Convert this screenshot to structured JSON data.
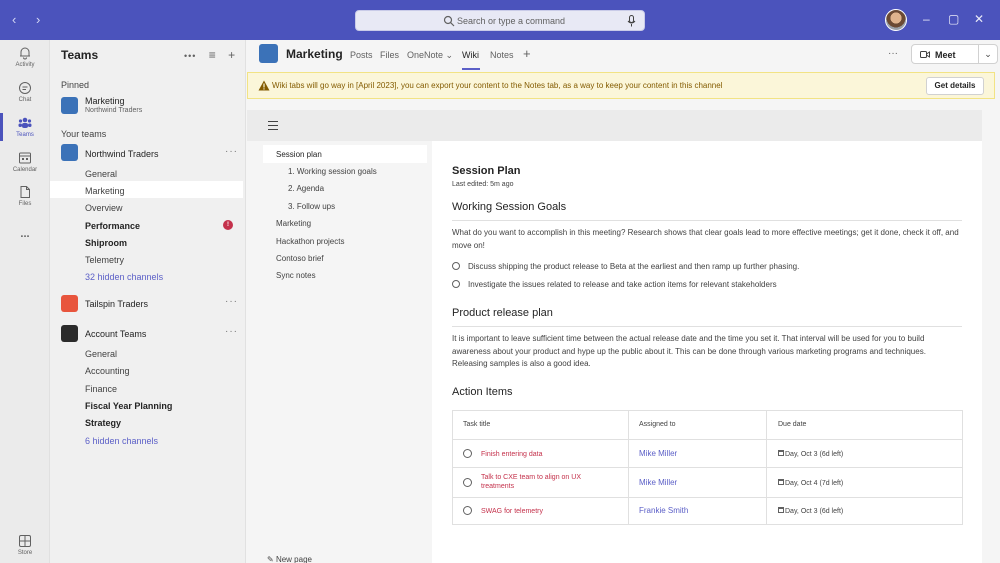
{
  "titlebar": {
    "search_placeholder": "Search or type a command"
  },
  "rail": {
    "items": [
      {
        "label": "Activity",
        "icon": "bell-icon"
      },
      {
        "label": "Chat",
        "icon": "chat-icon"
      },
      {
        "label": "Teams",
        "icon": "teams-icon"
      },
      {
        "label": "Calendar",
        "icon": "calendar-icon"
      },
      {
        "label": "Files",
        "icon": "file-icon"
      },
      {
        "label": "Store",
        "icon": "store-icon"
      }
    ],
    "more": "..."
  },
  "teams_panel": {
    "title": "Teams",
    "pinned_label": "Pinned",
    "pinned": {
      "name": "Marketing",
      "sub": "Northwind Traders"
    },
    "your_teams_label": "Your teams",
    "teams": [
      {
        "name": "Northwind Traders",
        "channels": [
          "General",
          "Marketing",
          "Overview",
          "Performance",
          "Shiproom",
          "Telemetry",
          "32 hidden channels"
        ]
      },
      {
        "name": "Tailspin Traders",
        "channels": []
      },
      {
        "name": "Account Teams",
        "channels": [
          "General",
          "Accounting",
          "Finance",
          "Fiscal Year Planning",
          "Strategy",
          "6 hidden channels"
        ]
      }
    ],
    "badge": "!"
  },
  "channel_header": {
    "name": "Marketing",
    "tabs": [
      "Posts",
      "Files",
      "OneNote",
      "Wiki",
      "Notes"
    ],
    "active_tab": "Wiki",
    "meet_label": "Meet"
  },
  "banner": {
    "text": "Wiki tabs will go way in [April 2023], you can export your content to the Notes tab, as a way to keep your content in this channel",
    "button": "Get details",
    "accent": "#835b00"
  },
  "wiki_nav": {
    "items": [
      "Session plan",
      "1. Working session goals",
      "2. Agenda",
      "3. Follow ups",
      "Marketing",
      "Hackathon projects",
      "Contoso brief",
      "Sync notes"
    ],
    "new_page": "New page"
  },
  "wiki": {
    "title": "Session Plan",
    "edited": "Last edited: 5m ago",
    "goals_heading": "Working Session Goals",
    "goals_para": "What do you want to accomplish in this meeting? Research shows that clear goals lead to more effective meetings; get it done, check it off, and move on!",
    "todos": [
      "Discuss shipping the product release to Beta at the earliest and then ramp up further phasing.",
      "Investigate the issues related to release and take action items for relevant stakeholders"
    ],
    "release_heading": "Product release plan",
    "release_para": "It is important to leave sufficient time between the actual release date and the time you set it. That interval will be used for you to build awareness about your product and hype up the public about it. This can be done through various marketing programs and techniques. Releasing samples is also a good idea.",
    "action_heading": "Action Items",
    "table": {
      "headers": [
        "Task title",
        "Assigned to",
        "Due date"
      ],
      "rows": [
        {
          "task": "Finish entering data",
          "assignee": "Mike Miller",
          "due": "Day, Oct 3 (6d left)"
        },
        {
          "task": "Talk to CXE team to align on UX treatments",
          "assignee": "Mike Miller",
          "due": "Day, Oct 4 (7d left)"
        },
        {
          "task": "SWAG for telemetry",
          "assignee": "Frankie Smith",
          "due": "Day, Oct 3 (6d left)"
        }
      ]
    }
  },
  "colors": {
    "brand": "#4b53bc",
    "link": "#5b5fc7",
    "task": "#c4314b"
  }
}
